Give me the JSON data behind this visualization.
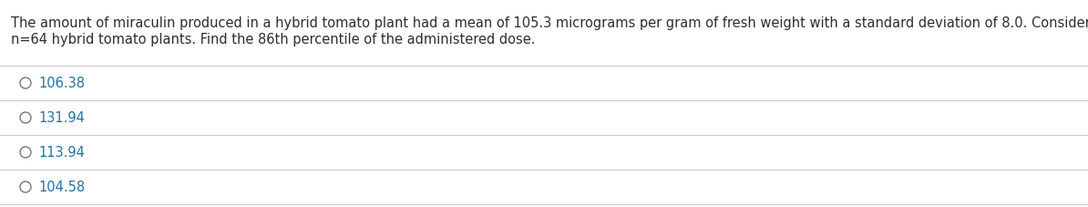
{
  "question_text_line1": "The amount of miraculin produced in a hybrid tomato plant had a mean of 105.3 micrograms per gram of fresh weight with a standard deviation of 8.0. Consider a random sample of",
  "question_text_line2": "n=64 hybrid tomato plants. Find the 86th percentile of the administered dose.",
  "options": [
    "106.38",
    "131.94",
    "113.94",
    "104.58"
  ],
  "question_color": "#2d2d2d",
  "option_color": "#2471a3",
  "circle_color": "#777777",
  "line_color": "#cccccc",
  "background_color": "#ffffff",
  "font_size_question": 10.5,
  "font_size_option": 10.5,
  "fig_width": 11.94,
  "fig_height": 2.27,
  "dpi": 100
}
